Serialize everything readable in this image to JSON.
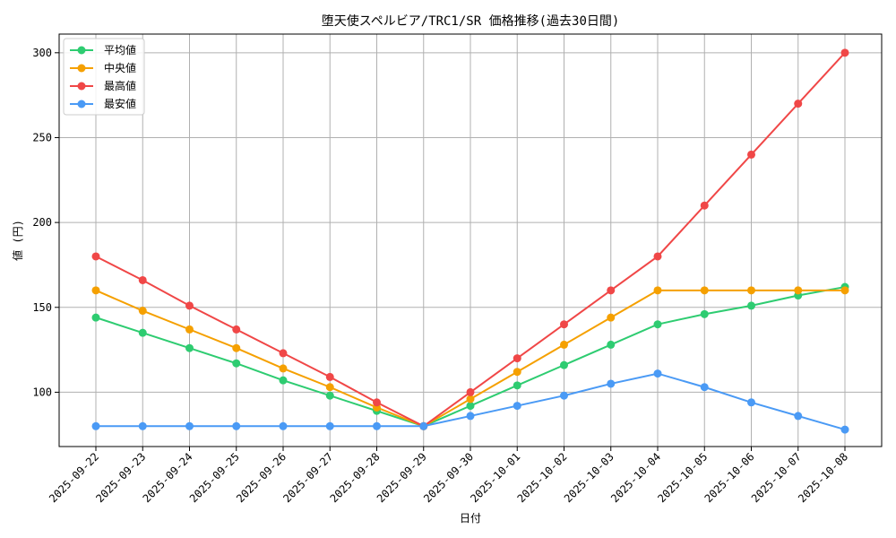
{
  "chart_data": {
    "type": "line",
    "title": "堕天使スペルビア/TRC1/SR 価格推移(過去30日間)",
    "xlabel": "日付",
    "ylabel": "値 (円)",
    "categories": [
      "2025-09-22",
      "2025-09-23",
      "2025-09-24",
      "2025-09-25",
      "2025-09-26",
      "2025-09-27",
      "2025-09-28",
      "2025-09-29",
      "2025-09-30",
      "2025-10-01",
      "2025-10-02",
      "2025-10-03",
      "2025-10-04",
      "2025-10-05",
      "2025-10-06",
      "2025-10-07",
      "2025-10-08"
    ],
    "ylim": [
      68,
      311
    ],
    "yticks": [
      100,
      150,
      200,
      250,
      300
    ],
    "grid": true,
    "legend_position": "top-left",
    "series": [
      {
        "name": "平均値",
        "color": "#2ecc71",
        "values": [
          144,
          135,
          126,
          117,
          107,
          98,
          89,
          80,
          92,
          104,
          116,
          128,
          140,
          146,
          151,
          157,
          162
        ]
      },
      {
        "name": "中央値",
        "color": "#f5a000",
        "values": [
          160,
          148,
          137,
          126,
          114,
          103,
          91,
          80,
          96,
          112,
          128,
          144,
          160,
          160,
          160,
          160,
          160
        ]
      },
      {
        "name": "最高値",
        "color": "#f04747",
        "values": [
          180,
          166,
          151,
          137,
          123,
          109,
          94,
          80,
          100,
          120,
          140,
          160,
          180,
          210,
          240,
          270,
          300
        ]
      },
      {
        "name": "最安値",
        "color": "#4a9af5",
        "values": [
          80,
          80,
          80,
          80,
          80,
          80,
          80,
          80,
          86,
          92,
          98,
          105,
          111,
          103,
          94,
          86,
          78
        ]
      }
    ]
  }
}
